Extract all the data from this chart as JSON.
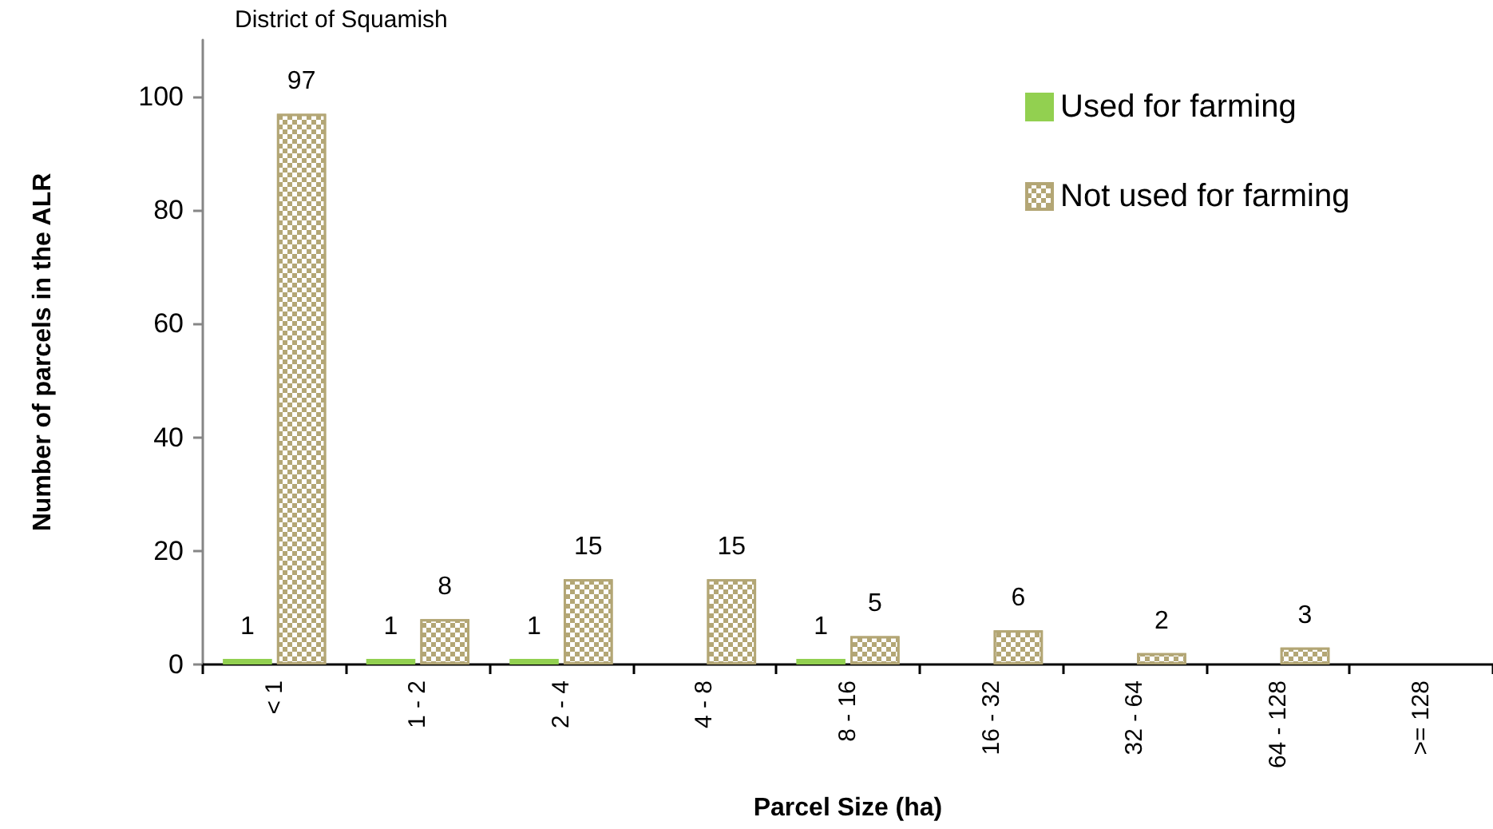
{
  "chart_data": {
    "type": "bar",
    "title": "District of Squamish",
    "xlabel": "Parcel Size (ha)",
    "ylabel": "Number of parcels in the ALR",
    "categories": [
      "< 1",
      "1 - 2",
      "2 - 4",
      "4 - 8",
      "8 - 16",
      "16 - 32",
      "32 - 64",
      "64 - 128",
      ">= 128"
    ],
    "series": [
      {
        "name": "Used for farming",
        "color": "#92d050",
        "values": [
          1,
          1,
          1,
          null,
          1,
          null,
          null,
          null,
          null
        ]
      },
      {
        "name": "Not used for farming",
        "color": "#b3a675",
        "values": [
          97,
          8,
          15,
          15,
          5,
          6,
          2,
          3,
          null
        ]
      }
    ],
    "ylim": [
      0,
      110
    ],
    "yticks": [
      0,
      20,
      40,
      60,
      80,
      100
    ],
    "legend": "top right",
    "data_labels": true
  }
}
